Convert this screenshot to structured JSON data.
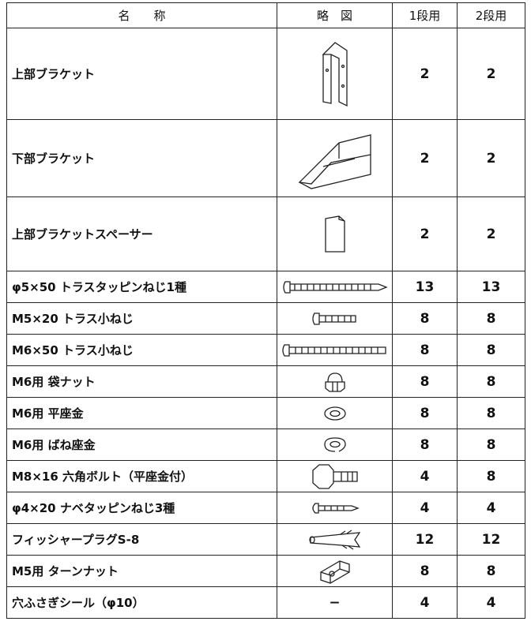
{
  "table": {
    "header": [
      "名　　称",
      "略　図",
      "1段用",
      "2段用"
    ],
    "rows": [
      {
        "name": "上部ブラケット",
        "qty1": 2,
        "qty2": 2
      },
      {
        "name": "下部ブラケット",
        "qty1": 2,
        "qty2": 2
      },
      {
        "name": "上部ブラケットスペーサー",
        "qty1": 2,
        "qty2": 2
      },
      {
        "name": "φ5×50 トラスタッピンねじ1種",
        "qty1": 13,
        "qty2": 13
      },
      {
        "name": "M5×20 トラス小ねじ",
        "qty1": 8,
        "qty2": 8
      },
      {
        "name": "M6×50 トラス小ねじ",
        "qty1": 8,
        "qty2": 8
      },
      {
        "name": "M6用 袋ナット",
        "qty1": 8,
        "qty2": 8
      },
      {
        "name": "M6用 平座金",
        "qty1": 8,
        "qty2": 8
      },
      {
        "name": "M6用 ばね座金",
        "qty1": 8,
        "qty2": 8
      },
      {
        "name": "M8×16 六角ボルト（平座金付）",
        "qty1": 4,
        "qty2": 8
      },
      {
        "name": "φ4×20 ナベタッピンねじ3種",
        "qty1": 4,
        "qty2": 4
      },
      {
        "name": "フィッシャープラグS-8",
        "qty1": 12,
        "qty2": 12
      },
      {
        "name": "M5用 ターンナット",
        "qty1": 8,
        "qty2": 8
      },
      {
        "name": "穴ふさぎシール（φ10）",
        "figure": "−",
        "qty1": 4,
        "qty2": 4
      }
    ]
  }
}
